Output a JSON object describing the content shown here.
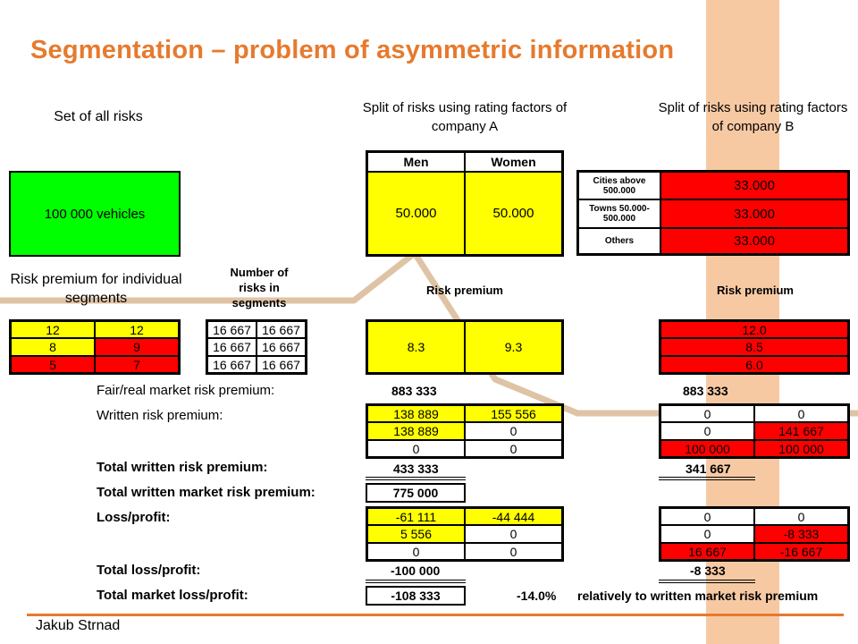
{
  "title": "Segmentation – problem of asymmetric information",
  "author": "Jakub Strnad",
  "headers": {
    "set_of_all_risks": "Set of all risks",
    "split_a": "Split of risks using rating factors of company A",
    "split_b": "Split of risks using rating factors of company B",
    "risk_premium_segments": "Risk premium for individual segments",
    "number_of_risks": "Number of risks in segments",
    "risk_premium_a": "Risk premium",
    "risk_premium_b": "Risk premium"
  },
  "all_risks": "100 000 vehicles",
  "company_a": {
    "col_men": "Men",
    "col_women": "Women",
    "men_count": "50.000",
    "women_count": "50.000",
    "premium_men": "8.3",
    "premium_women": "9.3",
    "fair_premium": "883 333",
    "written": [
      [
        "138 889",
        "155 556"
      ],
      [
        "138 889",
        "0"
      ],
      [
        "0",
        "0"
      ]
    ],
    "total_written": "433 333",
    "total_written_market": "775 000",
    "loss": [
      [
        "-61 111",
        "-44 444"
      ],
      [
        "5 556",
        "0"
      ],
      [
        "0",
        "0"
      ]
    ],
    "total_loss": "-100 000",
    "total_market_loss": "-108 333",
    "market_loss_pct": "-14.0%"
  },
  "company_b": {
    "rows": [
      {
        "label": "Cities above 500.000",
        "count": "33.000",
        "premium": "12.0"
      },
      {
        "label": "Towns 50.000-500.000",
        "count": "33.000",
        "premium": "8.5"
      },
      {
        "label": "Others",
        "count": "33.000",
        "premium": "6.0"
      }
    ],
    "fair_premium": "883 333",
    "written": [
      [
        "0",
        "0"
      ],
      [
        "0",
        "141 667"
      ],
      [
        "100 000",
        "100 000"
      ]
    ],
    "total_written": "341 667",
    "loss": [
      [
        "0",
        "0"
      ],
      [
        "0",
        "-8 333"
      ],
      [
        "16 667",
        "-16 667"
      ]
    ],
    "total_loss": "-8 333",
    "note": "relatively to written market risk premium"
  },
  "segment_premiums": [
    [
      "12",
      "12"
    ],
    [
      "8",
      "9"
    ],
    [
      "5",
      "7"
    ]
  ],
  "segment_counts": [
    [
      "16 667",
      "16 667"
    ],
    [
      "16 667",
      "16 667"
    ],
    [
      "16 667",
      "16 667"
    ]
  ],
  "labels": {
    "fair": "Fair/real market risk premium:",
    "written": "Written risk premium:",
    "total_written": "Total written risk premium:",
    "total_written_market": "Total written market risk premium:",
    "loss": "Loss/profit:",
    "total_loss": "Total loss/profit:",
    "total_market_loss": "Total market loss/profit:"
  },
  "colors": {
    "accent": "#e67a2e",
    "stripe": "#f7c9a3",
    "path": "#dfc3a5",
    "yellow": "#ffff00",
    "red": "#ff0000",
    "green": "#00ff00"
  }
}
